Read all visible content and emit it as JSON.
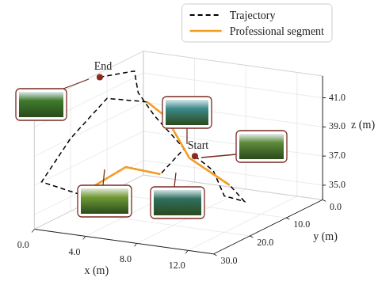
{
  "chart_data": {
    "type": "line3d",
    "xlabel": "x (m)",
    "ylabel": "y (m)",
    "zlabel": "z (m)",
    "xlim": [
      0,
      14
    ],
    "ylim": [
      0,
      30
    ],
    "zlim": [
      34,
      42.5
    ],
    "xticks": [
      {
        "value": 0,
        "label": "0.0"
      },
      {
        "value": 4,
        "label": "4.0"
      },
      {
        "value": 8,
        "label": "8.0"
      },
      {
        "value": 12,
        "label": "12.0"
      }
    ],
    "yticks": [
      {
        "value": 0,
        "label": "0.0"
      },
      {
        "value": 10,
        "label": "10.0"
      },
      {
        "value": 20,
        "label": "20.0"
      },
      {
        "value": 30,
        "label": "30.0"
      }
    ],
    "zticks": [
      {
        "value": 35,
        "label": "35.0"
      },
      {
        "value": 37,
        "label": "37.0"
      },
      {
        "value": 39,
        "label": "39.0"
      },
      {
        "value": 41,
        "label": "41.0"
      }
    ],
    "grid": true,
    "legend": "upper right",
    "series": [
      {
        "name": "Trajectory",
        "color": "#000000",
        "line_style": "dashed",
        "x": [
          8,
          10,
          12,
          13,
          11,
          7,
          4,
          2,
          0,
          0,
          0,
          3,
          6,
          9,
          10,
          6,
          3,
          1,
          0
        ],
        "y": [
          14,
          16,
          20,
          18,
          15,
          12,
          8,
          6,
          10,
          20,
          28,
          28,
          26,
          27,
          24,
          18,
          12,
          6,
          12
        ],
        "z": [
          38,
          37.5,
          36.5,
          36,
          36.5,
          37.5,
          39.5,
          40,
          40.5,
          39,
          37,
          36.5,
          38.5,
          38.5,
          40,
          41,
          41.5,
          42,
          42.2
        ]
      },
      {
        "name": "Professional segment",
        "color": "#f39c1f",
        "line_style": "solid",
        "x": [
          null,
          null,
          null,
          null,
          11,
          7,
          4,
          2,
          null,
          null,
          null,
          3,
          6,
          9,
          null,
          null,
          null,
          null,
          null
        ],
        "y": [
          null,
          null,
          null,
          null,
          15,
          12,
          8,
          6,
          null,
          null,
          null,
          28,
          26,
          27,
          null,
          null,
          null,
          null,
          null
        ],
        "z": [
          null,
          null,
          null,
          null,
          36.5,
          37.5,
          39.5,
          40,
          null,
          null,
          null,
          36.5,
          38.5,
          38.5,
          null,
          null,
          null,
          null,
          null
        ]
      }
    ],
    "annotations": [
      {
        "text": "Start",
        "x": 8,
        "y": 14,
        "z": 38
      },
      {
        "text": "End",
        "x": 0,
        "y": 12,
        "z": 42.2
      }
    ]
  }
}
